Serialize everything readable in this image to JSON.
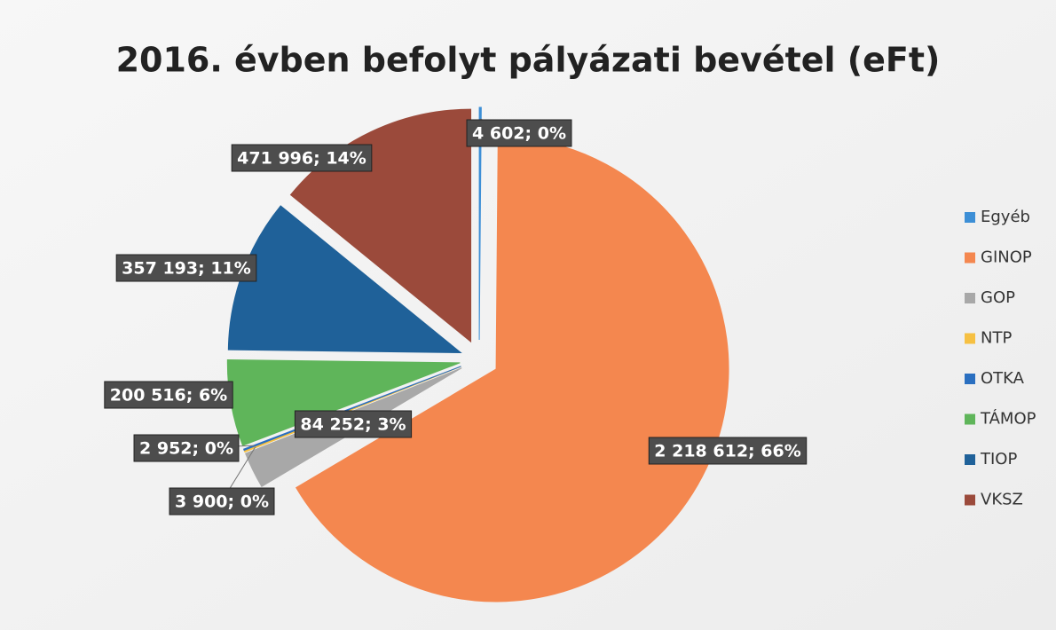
{
  "chart_data": {
    "type": "pie",
    "title": "2016. évben befolyt pályázati bevétel (eFt)",
    "categories": [
      "Egyéb",
      "GINOP",
      "GOP",
      "NTP",
      "OTKA",
      "TÁMOP",
      "TIOP",
      "VKSZ"
    ],
    "values": [
      4602,
      2218612,
      84252,
      3900,
      2952,
      200516,
      357193,
      471996
    ],
    "value_labels": [
      "4 602; 0%",
      "2 218 612; 66%",
      "84 252; 3%",
      "3 900; 0%",
      "2 952; 0%",
      "200 516; 6%",
      "357 193; 11%",
      "471 996; 14%"
    ],
    "colors": [
      "#3d8fd6",
      "#f4874f",
      "#a8a8a8",
      "#f6c042",
      "#2a6fc0",
      "#5fb55a",
      "#1f6199",
      "#9b4a3b"
    ],
    "legend": "right"
  }
}
